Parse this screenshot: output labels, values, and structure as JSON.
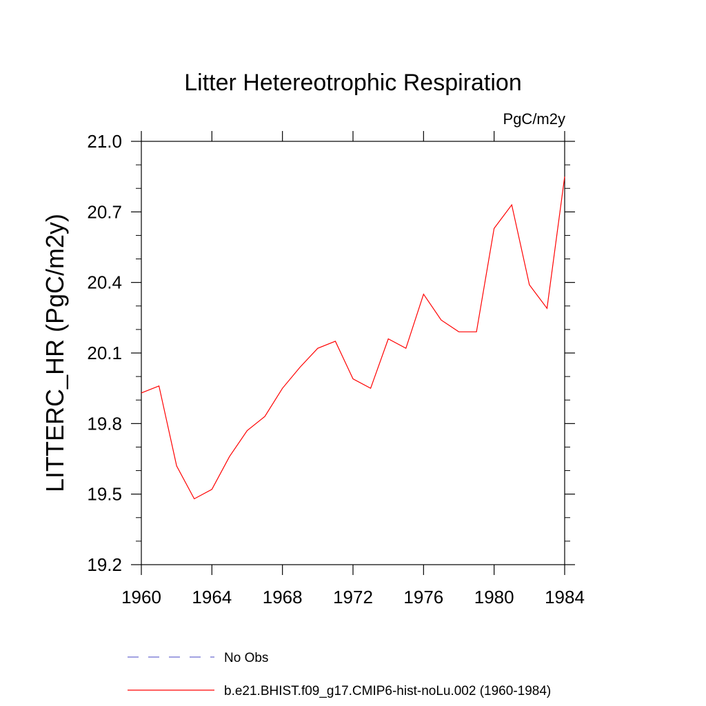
{
  "chart_data": {
    "type": "line",
    "title": "Litter Hetereotrophic Respiration",
    "units_label": "PgC/m2y",
    "ylabel": "LITTERC_HR  (PgC/m2y)",
    "xlabel": "",
    "xlim": [
      1960,
      1984
    ],
    "ylim": [
      19.2,
      21.0
    ],
    "x_ticks": [
      1960,
      1964,
      1968,
      1972,
      1976,
      1980,
      1984
    ],
    "x_tick_labels": [
      "1960",
      "1964",
      "1968",
      "1972",
      "1976",
      "1980",
      "1984"
    ],
    "y_ticks": [
      19.2,
      19.5,
      19.8,
      20.1,
      20.4,
      20.7,
      21.0
    ],
    "y_tick_labels": [
      "19.2",
      "19.5",
      "19.8",
      "20.1",
      "20.4",
      "20.7",
      "21.0"
    ],
    "grid": false,
    "legend_position": "bottom",
    "series": [
      {
        "name": "No Obs",
        "style": "dashed",
        "color": "#6b6bd1",
        "x": [],
        "y": []
      },
      {
        "name": "b.e21.BHIST.f09_g17.CMIP6-hist-noLu.002 (1960-1984)",
        "style": "solid",
        "color": "#ff0000",
        "x": [
          1960,
          1961,
          1962,
          1963,
          1964,
          1965,
          1966,
          1967,
          1968,
          1969,
          1970,
          1971,
          1972,
          1973,
          1974,
          1975,
          1976,
          1977,
          1978,
          1979,
          1980,
          1981,
          1982,
          1983,
          1984
        ],
        "y": [
          19.93,
          19.96,
          19.62,
          19.48,
          19.52,
          19.66,
          19.77,
          19.83,
          19.95,
          20.04,
          20.12,
          20.15,
          19.99,
          19.95,
          20.16,
          20.12,
          20.35,
          20.24,
          20.19,
          20.19,
          20.63,
          20.73,
          20.39,
          20.29,
          20.85
        ]
      }
    ]
  }
}
